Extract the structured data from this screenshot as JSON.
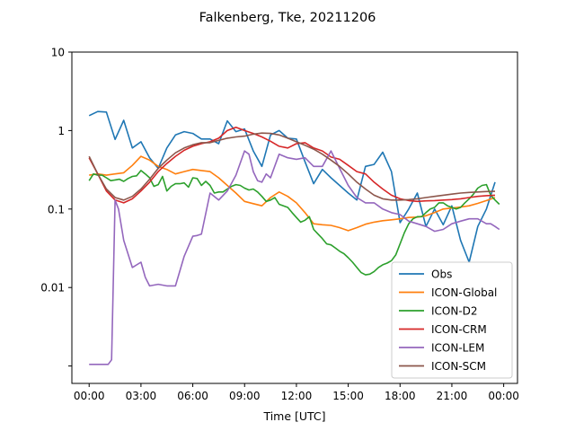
{
  "chart_data": {
    "type": "line",
    "title": "Falkenberg, Tke, 20211206",
    "xlabel": "Time [UTC]",
    "ylabel": "",
    "yscale": "log",
    "ylim": [
      0.0006,
      10
    ],
    "xlim": [
      -1.0,
      24.8
    ],
    "grid": false,
    "legend_position": "lower-right",
    "x_ticks": [
      0,
      3,
      6,
      9,
      12,
      15,
      18,
      21,
      24
    ],
    "x_tick_labels": [
      "00:00",
      "03:00",
      "06:00",
      "09:00",
      "12:00",
      "15:00",
      "18:00",
      "21:00",
      "00:00"
    ],
    "y_ticks": [
      0.001,
      0.01,
      0.1,
      1,
      10
    ],
    "y_tick_labels": [
      "",
      "0.01",
      "0.1",
      "1",
      "10"
    ],
    "series": [
      {
        "name": "Obs",
        "color": "#1f77b4",
        "x": [
          0,
          0.5,
          1,
          1.5,
          2,
          2.5,
          3,
          3.5,
          4,
          4.5,
          5,
          5.5,
          6,
          6.5,
          7,
          7.5,
          8,
          8.5,
          9,
          9.5,
          10,
          10.5,
          11,
          11.5,
          12,
          12.5,
          13,
          13.5,
          14,
          14.5,
          15,
          15.5,
          16,
          16.5,
          17,
          17.5,
          18,
          18.5,
          19,
          19.5,
          20,
          20.5,
          21,
          21.5,
          22,
          22.5,
          23,
          23.5
        ],
        "y": [
          1.55,
          1.75,
          1.72,
          0.77,
          1.35,
          0.6,
          0.72,
          0.45,
          0.33,
          0.6,
          0.88,
          0.97,
          0.92,
          0.78,
          0.78,
          0.68,
          1.33,
          0.97,
          1.05,
          0.55,
          0.35,
          0.88,
          1.0,
          0.8,
          0.78,
          0.4,
          0.21,
          0.32,
          0.25,
          0.2,
          0.16,
          0.13,
          0.35,
          0.37,
          0.53,
          0.3,
          0.067,
          0.1,
          0.16,
          0.06,
          0.1,
          0.063,
          0.11,
          0.04,
          0.021,
          0.06,
          0.1,
          0.22
        ]
      },
      {
        "name": "ICON-Global",
        "color": "#ff7f0e",
        "x": [
          0,
          0.5,
          1,
          1.5,
          2,
          2.5,
          3,
          3.5,
          4,
          4.5,
          5,
          5.5,
          6,
          6.5,
          7,
          7.5,
          8,
          8.5,
          9,
          9.5,
          10,
          10.5,
          11,
          11.5,
          12,
          12.5,
          13,
          13.5,
          14,
          14.5,
          15,
          15.5,
          16,
          16.5,
          17,
          17.5,
          18,
          18.5,
          19,
          19.5,
          20,
          20.5,
          21,
          21.5,
          22,
          22.5,
          23,
          23.5
        ],
        "y": [
          0.27,
          0.28,
          0.27,
          0.28,
          0.29,
          0.36,
          0.47,
          0.42,
          0.35,
          0.32,
          0.28,
          0.3,
          0.32,
          0.31,
          0.3,
          0.25,
          0.2,
          0.16,
          0.125,
          0.117,
          0.11,
          0.14,
          0.165,
          0.145,
          0.12,
          0.09,
          0.065,
          0.063,
          0.062,
          0.058,
          0.053,
          0.058,
          0.064,
          0.068,
          0.071,
          0.073,
          0.075,
          0.078,
          0.079,
          0.082,
          0.09,
          0.1,
          0.103,
          0.106,
          0.11,
          0.118,
          0.128,
          0.14
        ]
      },
      {
        "name": "ICON-D2",
        "color": "#2ca02c",
        "x": [
          0,
          0.25,
          0.5,
          0.75,
          1,
          1.25,
          1.5,
          1.75,
          2,
          2.25,
          2.5,
          2.75,
          3,
          3.25,
          3.5,
          3.75,
          4,
          4.25,
          4.5,
          4.75,
          5,
          5.25,
          5.5,
          5.75,
          6,
          6.25,
          6.5,
          6.75,
          7,
          7.25,
          7.5,
          7.75,
          8,
          8.25,
          8.5,
          8.75,
          9,
          9.25,
          9.5,
          9.75,
          10,
          10.25,
          10.5,
          10.75,
          11,
          11.25,
          11.5,
          11.75,
          12,
          12.25,
          12.5,
          12.75,
          13,
          13.25,
          13.5,
          13.75,
          14,
          14.25,
          14.5,
          14.75,
          15,
          15.25,
          15.5,
          15.75,
          16,
          16.25,
          16.5,
          16.75,
          17,
          17.25,
          17.5,
          17.75,
          18,
          18.25,
          18.5,
          18.75,
          19,
          19.25,
          19.5,
          19.75,
          20,
          20.25,
          20.5,
          20.75,
          21,
          21.25,
          21.5,
          21.75,
          22,
          22.25,
          22.5,
          22.75,
          23,
          23.25,
          23.5,
          23.75
        ],
        "y": [
          0.23,
          0.28,
          0.27,
          0.27,
          0.25,
          0.23,
          0.235,
          0.24,
          0.225,
          0.245,
          0.26,
          0.265,
          0.31,
          0.28,
          0.25,
          0.195,
          0.205,
          0.26,
          0.17,
          0.195,
          0.21,
          0.21,
          0.215,
          0.19,
          0.25,
          0.245,
          0.2,
          0.225,
          0.2,
          0.16,
          0.165,
          0.165,
          0.18,
          0.195,
          0.205,
          0.2,
          0.185,
          0.175,
          0.18,
          0.165,
          0.145,
          0.125,
          0.13,
          0.14,
          0.115,
          0.11,
          0.105,
          0.09,
          0.078,
          0.068,
          0.072,
          0.08,
          0.055,
          0.048,
          0.042,
          0.036,
          0.035,
          0.032,
          0.029,
          0.027,
          0.024,
          0.021,
          0.018,
          0.0155,
          0.0145,
          0.0148,
          0.016,
          0.018,
          0.0195,
          0.0205,
          0.022,
          0.026,
          0.036,
          0.05,
          0.065,
          0.075,
          0.08,
          0.08,
          0.09,
          0.1,
          0.105,
          0.12,
          0.12,
          0.11,
          0.105,
          0.1,
          0.105,
          0.12,
          0.135,
          0.155,
          0.185,
          0.2,
          0.205,
          0.15,
          0.13,
          0.115
        ]
      },
      {
        "name": "ICON-CRM",
        "color": "#d62728",
        "x": [
          0,
          0.5,
          1,
          1.5,
          2,
          2.5,
          3,
          3.5,
          4,
          4.5,
          5,
          5.5,
          6,
          6.5,
          7,
          7.5,
          8,
          8.5,
          9,
          9.5,
          10,
          10.5,
          11,
          11.5,
          12,
          12.5,
          13,
          13.5,
          14,
          14.5,
          15,
          15.5,
          16,
          16.5,
          17,
          17.5,
          18,
          18.5,
          19,
          19.5,
          20,
          20.5,
          21,
          21.5,
          22,
          22.5,
          23,
          23.5
        ],
        "y": [
          0.45,
          0.28,
          0.17,
          0.13,
          0.12,
          0.135,
          0.17,
          0.22,
          0.3,
          0.38,
          0.47,
          0.56,
          0.63,
          0.68,
          0.72,
          0.8,
          1.0,
          1.1,
          1.0,
          0.92,
          0.83,
          0.73,
          0.63,
          0.6,
          0.68,
          0.7,
          0.6,
          0.55,
          0.46,
          0.43,
          0.36,
          0.3,
          0.28,
          0.22,
          0.18,
          0.15,
          0.135,
          0.128,
          0.125,
          0.127,
          0.128,
          0.13,
          0.132,
          0.135,
          0.14,
          0.145,
          0.148,
          0.15
        ]
      },
      {
        "name": "ICON-LEM",
        "color": "#9467bd",
        "x": [
          0,
          0.5,
          0.9,
          1.1,
          1.3,
          1.5,
          1.7,
          2,
          2.5,
          3,
          3.25,
          3.5,
          4,
          4.5,
          5,
          5.5,
          6,
          6.25,
          6.5,
          7,
          7.5,
          8,
          8.5,
          9,
          9.25,
          9.5,
          9.75,
          10,
          10.25,
          10.5,
          11,
          11.5,
          12,
          12.5,
          13,
          13.5,
          14,
          14.5,
          15,
          15.5,
          16,
          16.5,
          17,
          17.5,
          18,
          18.5,
          19,
          19.5,
          20,
          20.5,
          21,
          21.5,
          22,
          22.5,
          23,
          23.25,
          23.5,
          23.75
        ],
        "y": [
          0.00105,
          0.00105,
          0.00105,
          0.00105,
          0.0012,
          0.13,
          0.1,
          0.04,
          0.018,
          0.021,
          0.0135,
          0.0105,
          0.011,
          0.0105,
          0.0105,
          0.025,
          0.045,
          0.046,
          0.048,
          0.16,
          0.13,
          0.17,
          0.27,
          0.55,
          0.5,
          0.3,
          0.23,
          0.22,
          0.28,
          0.25,
          0.5,
          0.45,
          0.43,
          0.45,
          0.35,
          0.35,
          0.55,
          0.33,
          0.2,
          0.14,
          0.12,
          0.12,
          0.1,
          0.09,
          0.085,
          0.07,
          0.065,
          0.06,
          0.052,
          0.055,
          0.065,
          0.07,
          0.075,
          0.075,
          0.065,
          0.065,
          0.06,
          0.055
        ]
      },
      {
        "name": "ICON-SCM",
        "color": "#8c564b",
        "x": [
          0,
          0.5,
          1,
          1.5,
          2,
          2.5,
          3,
          3.5,
          4,
          4.5,
          5,
          5.5,
          6,
          6.5,
          7,
          7.5,
          8,
          8.5,
          9,
          9.5,
          10,
          10.5,
          11,
          11.5,
          12,
          12.5,
          13,
          13.5,
          14,
          14.5,
          15,
          15.5,
          16,
          16.5,
          17,
          17.5,
          18,
          18.5,
          19,
          19.5,
          20,
          20.5,
          21,
          21.5,
          22,
          22.5,
          23,
          23.5
        ],
        "y": [
          0.47,
          0.28,
          0.18,
          0.14,
          0.13,
          0.145,
          0.18,
          0.24,
          0.33,
          0.42,
          0.52,
          0.6,
          0.66,
          0.7,
          0.7,
          0.75,
          0.8,
          0.83,
          0.85,
          0.9,
          0.93,
          0.92,
          0.88,
          0.8,
          0.72,
          0.65,
          0.58,
          0.5,
          0.42,
          0.35,
          0.28,
          0.22,
          0.18,
          0.15,
          0.135,
          0.13,
          0.13,
          0.132,
          0.135,
          0.14,
          0.145,
          0.15,
          0.155,
          0.16,
          0.163,
          0.165,
          0.167,
          0.168
        ]
      }
    ]
  }
}
